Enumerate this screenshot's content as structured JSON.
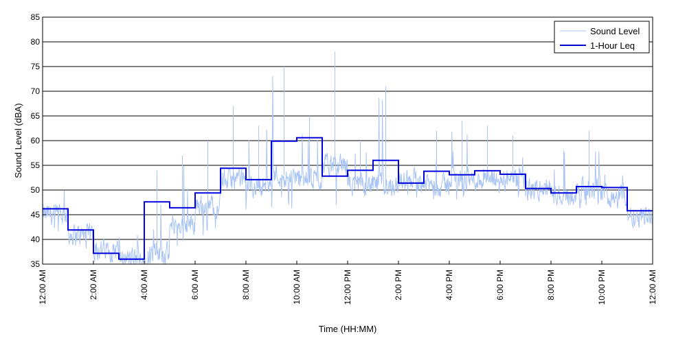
{
  "chart_data": {
    "type": "line",
    "title": "",
    "xlabel": "Time (HH:MM)",
    "ylabel": "Sound Level (dBA)",
    "ylim": [
      35,
      85
    ],
    "yticks": [
      35,
      40,
      45,
      50,
      55,
      60,
      65,
      70,
      75,
      80,
      85
    ],
    "xlim_hours": [
      0,
      24
    ],
    "xticks": [
      {
        "hour": 0,
        "label": "12:00 AM"
      },
      {
        "hour": 2,
        "label": "2:00 AM"
      },
      {
        "hour": 4,
        "label": "4:00 AM"
      },
      {
        "hour": 6,
        "label": "6:00 AM"
      },
      {
        "hour": 8,
        "label": "8:00 AM"
      },
      {
        "hour": 10,
        "label": "10:00 AM"
      },
      {
        "hour": 12,
        "label": "12:00 PM"
      },
      {
        "hour": 14,
        "label": "2:00 PM"
      },
      {
        "hour": 16,
        "label": "4:00 PM"
      },
      {
        "hour": 18,
        "label": "6:00 PM"
      },
      {
        "hour": 20,
        "label": "8:00 PM"
      },
      {
        "hour": 22,
        "label": "10:00 PM"
      },
      {
        "hour": 24,
        "label": "12:00 AM"
      }
    ],
    "grid": "horizontal",
    "legend_position": "top-right",
    "series": [
      {
        "name": "Sound Level",
        "color": "#a9c4f5",
        "style": "thin-noisy",
        "hourly_mean": [
          45,
          41,
          38,
          36,
          37,
          43,
          47,
          52,
          51,
          53,
          52,
          55,
          51,
          51,
          52,
          51,
          52,
          52,
          52,
          50,
          49,
          50,
          49,
          45
        ],
        "hourly_min": [
          41,
          38,
          35,
          35,
          35,
          37,
          40,
          44,
          46,
          46,
          46,
          46,
          47,
          47,
          48,
          48,
          47,
          48,
          48,
          46,
          45,
          46,
          46,
          42
        ],
        "hourly_max": [
          53,
          47,
          43,
          41,
          54,
          57,
          60,
          67,
          63,
          75,
          65,
          78,
          60,
          71,
          60,
          62,
          64,
          63,
          61,
          57,
          58,
          62,
          55,
          48
        ]
      },
      {
        "name": "1-Hour Leq",
        "color": "#0000dd",
        "style": "step",
        "values": [
          46.2,
          41.9,
          37.2,
          36.0,
          47.6,
          46.4,
          49.4,
          54.4,
          52.1,
          59.9,
          60.6,
          52.8,
          54.0,
          56.0,
          51.4,
          53.8,
          53.1,
          53.9,
          53.2,
          50.3,
          49.4,
          50.7,
          50.5,
          45.8
        ]
      }
    ]
  }
}
